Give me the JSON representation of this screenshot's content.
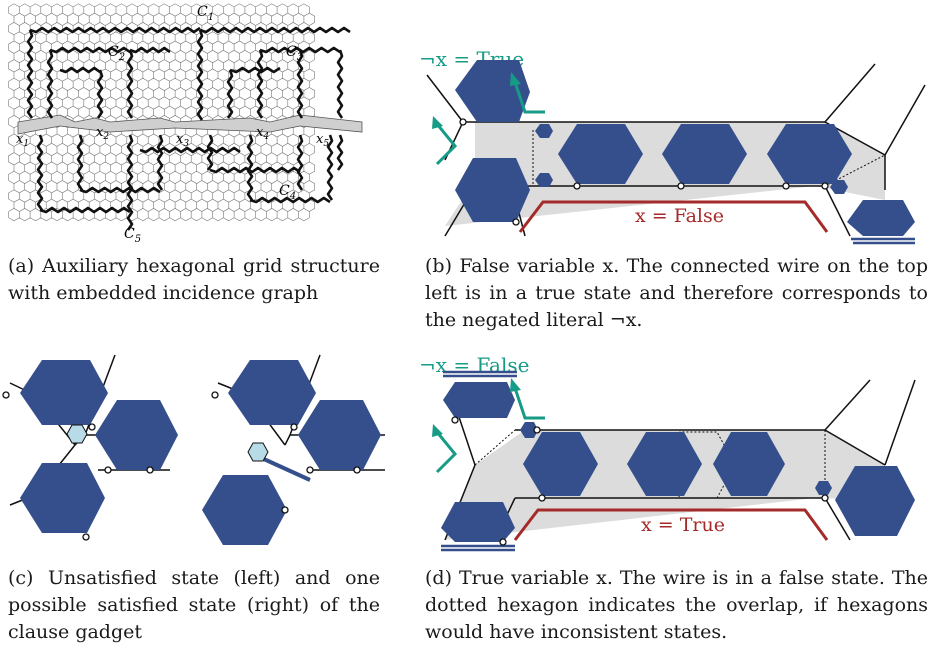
{
  "panel_a": {
    "caption_tag": "(a)",
    "caption": "Auxiliary hexagonal grid structure with embedded incidence graph",
    "clause_labels": [
      "C1",
      "C2",
      "C3",
      "C4",
      "C5"
    ],
    "variable_labels": [
      "x1",
      "x2",
      "x3",
      "x4",
      "x5"
    ]
  },
  "panel_b": {
    "caption_tag": "(b)",
    "caption": "False variable x. The connected wire on the top left is in a true state and therefore corresponds to the negated literal ¬x.",
    "neg_label": "¬x = True",
    "pos_label": "x = False"
  },
  "panel_c": {
    "caption_tag": "(c)",
    "caption": "Unsatisfied state (left) and one possible satisfied state (right) of the clause gadget"
  },
  "panel_d": {
    "caption_tag": "(d)",
    "caption": "True variable x. The wire is in a false state. The dotted hexagon indicates the overlap, if hexagons would have inconsistent states.",
    "neg_label": "¬x = False",
    "pos_label": "x = True"
  },
  "colors": {
    "hex_fill": "#344f8c",
    "gray": "#dcdcdc",
    "teal": "#169b86",
    "red": "#a52a2a",
    "light_blue": "#b8dbe8"
  }
}
